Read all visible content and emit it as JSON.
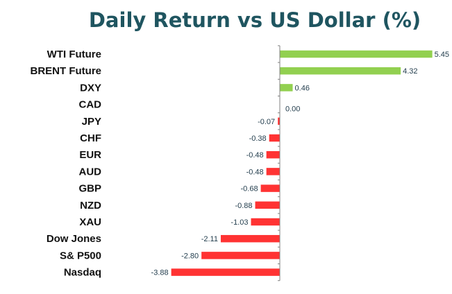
{
  "chart_data": {
    "type": "bar",
    "orientation": "horizontal",
    "title": "Daily Return vs US Dollar (%)",
    "xlabel": "",
    "ylabel": "",
    "categories": [
      "WTI Future",
      "BRENT Future",
      "DXY",
      "CAD",
      "JPY",
      "CHF",
      "EUR",
      "AUD",
      "GBP",
      "NZD",
      "XAU",
      "Dow Jones",
      "S& P500",
      "Nasdaq"
    ],
    "values": [
      5.45,
      4.32,
      0.46,
      0.0,
      -0.07,
      -0.38,
      -0.48,
      -0.48,
      -0.68,
      -0.88,
      -1.03,
      -2.11,
      -2.8,
      -3.88
    ],
    "value_labels": [
      "5.45",
      "4.32",
      "0.46",
      "0.00",
      "-0.07",
      "-0.38",
      "-0.48",
      "-0.48",
      "-0.68",
      "-0.88",
      "-1.03",
      "-2.11",
      "-2.80",
      "-3.88"
    ],
    "xlim": [
      -4.1,
      5.6
    ],
    "grid": false,
    "legend": "none",
    "colors": {
      "positive": "#92d050",
      "negative": "#ff3333",
      "axis": "#808080",
      "title": "#1f5560"
    }
  }
}
